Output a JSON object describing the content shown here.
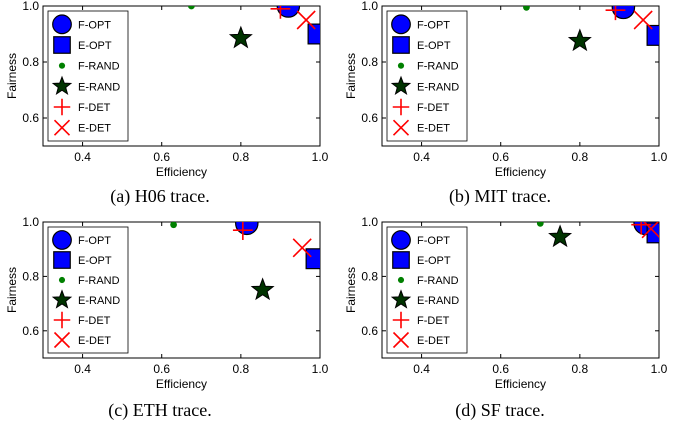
{
  "chart_data": [
    {
      "type": "scatter",
      "caption": "(a)  H06 trace.",
      "xlabel": "Efficiency",
      "ylabel": "Fairness",
      "xlim": [
        0.3,
        1.0
      ],
      "ylim": [
        0.5,
        1.0
      ],
      "xticks": [
        "0.4",
        "0.6",
        "0.8",
        "1.0"
      ],
      "yticks": [
        "0.6",
        "0.8",
        "1.0"
      ],
      "legend_position": "top-left",
      "series": [
        {
          "name": "F-OPT",
          "marker": "circle",
          "color": "#0000ff",
          "x": [
            0.92
          ],
          "y": [
            1.0
          ]
        },
        {
          "name": "E-OPT",
          "marker": "square",
          "color": "#0000ff",
          "x": [
            0.995
          ],
          "y": [
            0.9
          ]
        },
        {
          "name": "F-RAND",
          "marker": "dot",
          "color": "#008000",
          "x": [
            0.675
          ],
          "y": [
            1.0
          ]
        },
        {
          "name": "E-RAND",
          "marker": "star",
          "color": "#003300",
          "x": [
            0.8
          ],
          "y": [
            0.885
          ]
        },
        {
          "name": "F-DET",
          "marker": "plus",
          "color": "#ff0000",
          "x": [
            0.9
          ],
          "y": [
            0.99
          ]
        },
        {
          "name": "E-DET",
          "marker": "x",
          "color": "#ff0000",
          "x": [
            0.965
          ],
          "y": [
            0.95
          ]
        }
      ]
    },
    {
      "type": "scatter",
      "caption": "(b)  MIT trace.",
      "xlabel": "Efficiency",
      "ylabel": "Fairness",
      "xlim": [
        0.3,
        1.0
      ],
      "ylim": [
        0.5,
        1.0
      ],
      "xticks": [
        "0.4",
        "0.6",
        "0.8",
        "1.0"
      ],
      "yticks": [
        "0.6",
        "0.8",
        "1.0"
      ],
      "legend_position": "top-left",
      "series": [
        {
          "name": "F-OPT",
          "marker": "circle",
          "color": "#0000ff",
          "x": [
            0.91
          ],
          "y": [
            0.995
          ]
        },
        {
          "name": "E-OPT",
          "marker": "square",
          "color": "#0000ff",
          "x": [
            0.995
          ],
          "y": [
            0.895
          ]
        },
        {
          "name": "F-RAND",
          "marker": "dot",
          "color": "#008000",
          "x": [
            0.665
          ],
          "y": [
            0.995
          ]
        },
        {
          "name": "E-RAND",
          "marker": "star",
          "color": "#003300",
          "x": [
            0.8
          ],
          "y": [
            0.875
          ]
        },
        {
          "name": "F-DET",
          "marker": "plus",
          "color": "#ff0000",
          "x": [
            0.89
          ],
          "y": [
            0.985
          ]
        },
        {
          "name": "E-DET",
          "marker": "x",
          "color": "#ff0000",
          "x": [
            0.96
          ],
          "y": [
            0.95
          ]
        }
      ]
    },
    {
      "type": "scatter",
      "caption": "(c)  ETH trace.",
      "xlabel": "Efficiency",
      "ylabel": "Fairness",
      "xlim": [
        0.3,
        1.0
      ],
      "ylim": [
        0.5,
        1.0
      ],
      "xticks": [
        "0.4",
        "0.6",
        "0.8",
        "1.0"
      ],
      "yticks": [
        "0.6",
        "0.8",
        "1.0"
      ],
      "legend_position": "top-left",
      "series": [
        {
          "name": "F-OPT",
          "marker": "circle",
          "color": "#0000ff",
          "x": [
            0.815
          ],
          "y": [
            0.995
          ]
        },
        {
          "name": "E-OPT",
          "marker": "square",
          "color": "#0000ff",
          "x": [
            0.99
          ],
          "y": [
            0.865
          ]
        },
        {
          "name": "F-RAND",
          "marker": "dot",
          "color": "#008000",
          "x": [
            0.63
          ],
          "y": [
            0.99
          ]
        },
        {
          "name": "E-RAND",
          "marker": "star",
          "color": "#003300",
          "x": [
            0.855
          ],
          "y": [
            0.75
          ]
        },
        {
          "name": "F-DET",
          "marker": "plus",
          "color": "#ff0000",
          "x": [
            0.805
          ],
          "y": [
            0.97
          ]
        },
        {
          "name": "E-DET",
          "marker": "x",
          "color": "#ff0000",
          "x": [
            0.955
          ],
          "y": [
            0.905
          ]
        }
      ]
    },
    {
      "type": "scatter",
      "caption": "(d)  SF trace.",
      "xlabel": "Efficiency",
      "ylabel": "Fairness",
      "xlim": [
        0.3,
        1.0
      ],
      "ylim": [
        0.5,
        1.0
      ],
      "xticks": [
        "0.4",
        "0.6",
        "0.8",
        "1.0"
      ],
      "yticks": [
        "0.6",
        "0.8",
        "1.0"
      ],
      "legend_position": "top-left",
      "series": [
        {
          "name": "F-OPT",
          "marker": "circle",
          "color": "#0000ff",
          "x": [
            0.965
          ],
          "y": [
            0.995
          ]
        },
        {
          "name": "E-OPT",
          "marker": "square",
          "color": "#0000ff",
          "x": [
            0.995
          ],
          "y": [
            0.96
          ]
        },
        {
          "name": "F-RAND",
          "marker": "dot",
          "color": "#008000",
          "x": [
            0.7
          ],
          "y": [
            0.995
          ]
        },
        {
          "name": "E-RAND",
          "marker": "star",
          "color": "#003300",
          "x": [
            0.75
          ],
          "y": [
            0.945
          ]
        },
        {
          "name": "F-DET",
          "marker": "plus",
          "color": "#ff0000",
          "x": [
            0.955
          ],
          "y": [
            0.99
          ]
        },
        {
          "name": "E-DET",
          "marker": "x",
          "color": "#ff0000",
          "x": [
            0.98
          ],
          "y": [
            0.975
          ]
        }
      ]
    }
  ]
}
